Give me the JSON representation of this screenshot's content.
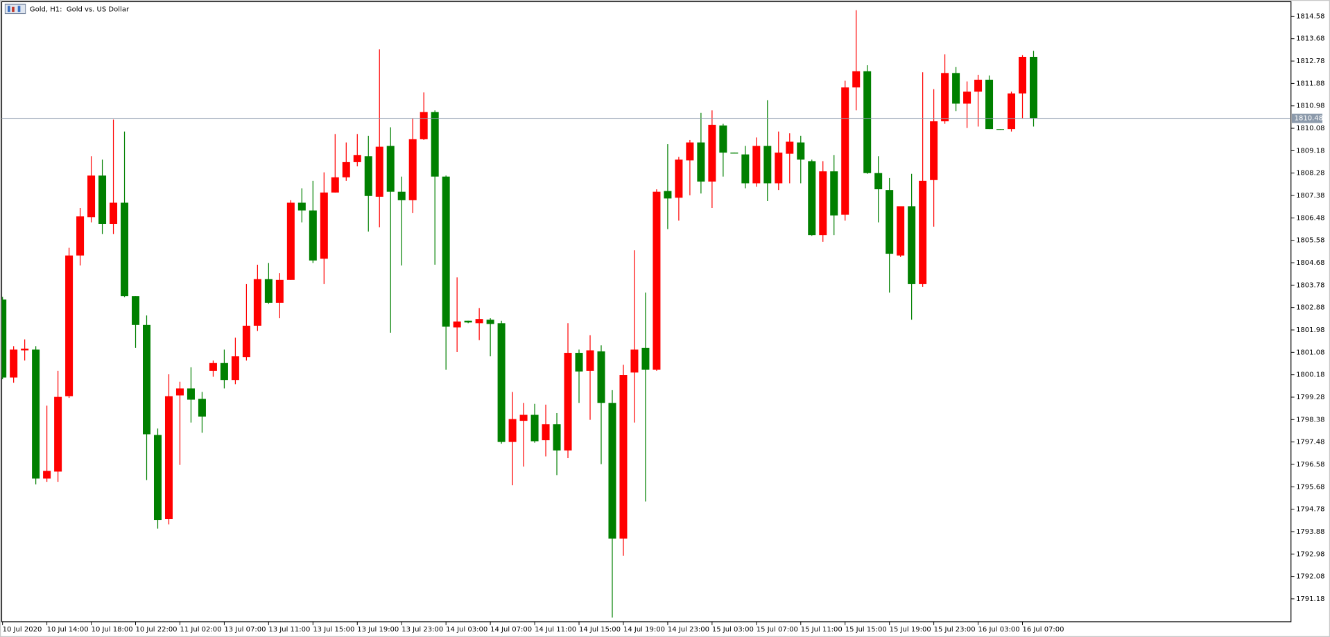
{
  "chart_data": {
    "type": "candlestick",
    "title": "Gold, H1:  Gold vs. US Dollar",
    "categories": [
      "10 Jul 2020",
      null,
      null,
      null,
      "10 Jul 14:00",
      null,
      null,
      null,
      "10 Jul 18:00",
      null,
      null,
      null,
      "10 Jul 22:00",
      null,
      null,
      null,
      "11 Jul 02:00",
      null,
      null,
      null,
      "13 Jul 07:00",
      null,
      null,
      null,
      "13 Jul 11:00",
      null,
      null,
      null,
      "13 Jul 15:00",
      null,
      null,
      null,
      "13 Jul 19:00",
      null,
      null,
      null,
      "13 Jul 23:00",
      null,
      null,
      null,
      "14 Jul 03:00",
      null,
      null,
      null,
      "14 Jul 07:00",
      null,
      null,
      null,
      "14 Jul 11:00",
      null,
      null,
      null,
      "14 Jul 15:00",
      null,
      null,
      null,
      "14 Jul 19:00",
      null,
      null,
      null,
      "14 Jul 23:00",
      null,
      null,
      null,
      "15 Jul 03:00",
      null,
      null,
      null,
      "15 Jul 07:00",
      null,
      null,
      null,
      "15 Jul 11:00",
      null,
      null,
      null,
      "15 Jul 15:00",
      null,
      null,
      null,
      "15 Jul 19:00",
      null,
      null,
      null,
      "15 Jul 23:00",
      null,
      null,
      null,
      "16 Jul 03:00",
      null,
      null,
      null,
      "16 Jul 07:00",
      null
    ],
    "open": [
      1803.2,
      1800.07,
      1801.16,
      1801.19,
      1796.01,
      1796.29,
      1799.32,
      1804.97,
      1806.51,
      1808.18,
      1806.24,
      1807.09,
      1803.34,
      1802.18,
      1797.76,
      1794.38,
      1799.35,
      1799.63,
      1799.21,
      1800.34,
      1800.65,
      1799.97,
      1800.89,
      1802.15,
      1804.02,
      1803.07,
      1803.99,
      1807.09,
      1806.78,
      1804.84,
      1807.5,
      1808.11,
      1808.72,
      1808.96,
      1807.33,
      1809.37,
      1807.53,
      1807.19,
      1809.64,
      1810.73,
      1808.14,
      1802.08,
      1802.35,
      1802.25,
      1802.39,
      1802.25,
      1797.48,
      1798.33,
      1798.57,
      1797.55,
      1798.19,
      1797.14,
      1801.06,
      1800.34,
      1801.12,
      1799.05,
      1793.6,
      1800.27,
      1801.26,
      1800.38,
      1807.56,
      1807.29,
      1808.79,
      1809.51,
      1807.94,
      1810.19,
      1809.1,
      1809.03,
      1807.87,
      1809.37,
      1807.87,
      1809.06,
      1809.51,
      1808.76,
      1805.79,
      1808.35,
      1806.61,
      1811.72,
      1812.37,
      1808.28,
      1807.6,
      1804.97,
      1806.95,
      1803.82,
      1808.0,
      1810.36,
      1812.3,
      1811.07,
      1811.55,
      1812.03,
      1810.05,
      1810.05,
      1811.48,
      1812.95
    ],
    "high": [
      1803.31,
      1801.33,
      1801.6,
      1801.33,
      1798.94,
      1800.34,
      1805.28,
      1806.88,
      1808.96,
      1808.82,
      1810.43,
      1809.95,
      1803.34,
      1802.56,
      1798.02,
      1800.2,
      1799.9,
      1800.48,
      1799.49,
      1800.75,
      1801.19,
      1801.67,
      1803.82,
      1804.6,
      1804.67,
      1804.26,
      1807.19,
      1807.67,
      1807.97,
      1808.31,
      1809.85,
      1809.51,
      1809.85,
      1809.78,
      1813.25,
      1810.12,
      1808.14,
      1810.46,
      1811.52,
      1810.8,
      1808.18,
      1804.09,
      1802.35,
      1802.86,
      1802.45,
      1802.35,
      1799.49,
      1799.05,
      1799.01,
      1798.98,
      1798.64,
      1802.25,
      1801.19,
      1801.77,
      1801.36,
      1799.56,
      1800.58,
      1805.18,
      1803.48,
      1807.63,
      1809.44,
      1808.93,
      1809.61,
      1810.7,
      1810.8,
      1810.26,
      1809.1,
      1809.37,
      1809.71,
      1811.21,
      1809.95,
      1809.88,
      1809.78,
      1808.82,
      1808.76,
      1809.0,
      1811.99,
      1814.82,
      1812.61,
      1808.96,
      1808.08,
      1806.95,
      1808.25,
      1812.33,
      1811.65,
      1813.05,
      1812.54,
      1811.96,
      1812.23,
      1812.2,
      1810.05,
      1811.55,
      1813.02,
      1813.19
    ],
    "low": [
      1800.0,
      1799.86,
      1800.75,
      1795.78,
      1795.88,
      1795.88,
      1799.25,
      1804.57,
      1806.3,
      1805.83,
      1805.83,
      1803.3,
      1801.26,
      1795.95,
      1794.0,
      1794.17,
      1796.56,
      1798.26,
      1797.85,
      1800.1,
      1799.63,
      1799.8,
      1800.75,
      1801.94,
      1803.03,
      1802.45,
      1803.99,
      1806.3,
      1804.67,
      1803.82,
      1807.5,
      1807.97,
      1808.55,
      1805.93,
      1806.1,
      1801.87,
      1804.57,
      1806.68,
      1809.61,
      1804.6,
      1800.38,
      1801.09,
      1802.25,
      1801.57,
      1800.92,
      1797.41,
      1795.74,
      1796.49,
      1797.45,
      1796.9,
      1796.15,
      1796.83,
      1799.05,
      1798.37,
      1796.59,
      1790.43,
      1792.91,
      1798.26,
      1795.09,
      1800.34,
      1806.03,
      1806.37,
      1807.39,
      1807.46,
      1806.88,
      1808.14,
      1809.07,
      1807.67,
      1807.73,
      1807.16,
      1807.6,
      1807.87,
      1807.87,
      1805.76,
      1805.52,
      1805.79,
      1806.37,
      1810.8,
      1808.25,
      1806.3,
      1803.48,
      1804.91,
      1802.39,
      1803.71,
      1806.13,
      1810.26,
      1810.77,
      1810.09,
      1810.15,
      1810.05,
      1810.02,
      1809.95,
      1810.46,
      1810.15
    ],
    "close": [
      1800.07,
      1801.19,
      1801.23,
      1796.01,
      1796.32,
      1799.29,
      1804.97,
      1806.54,
      1808.18,
      1806.24,
      1807.09,
      1803.34,
      1802.18,
      1797.79,
      1794.35,
      1799.32,
      1799.63,
      1799.18,
      1798.5,
      1800.65,
      1799.97,
      1800.92,
      1802.15,
      1804.02,
      1803.07,
      1803.99,
      1807.09,
      1806.78,
      1804.77,
      1807.5,
      1808.11,
      1808.72,
      1809.0,
      1807.36,
      1809.34,
      1807.53,
      1807.19,
      1809.64,
      1810.73,
      1808.14,
      1802.11,
      1802.32,
      1802.28,
      1802.42,
      1802.22,
      1797.48,
      1798.4,
      1798.57,
      1797.51,
      1798.19,
      1797.14,
      1801.06,
      1800.31,
      1801.16,
      1799.05,
      1793.6,
      1800.17,
      1801.19,
      1800.38,
      1807.53,
      1807.26,
      1808.82,
      1809.51,
      1807.94,
      1810.22,
      1809.1,
      1809.07,
      1807.87,
      1809.37,
      1807.87,
      1809.1,
      1809.54,
      1808.82,
      1805.79,
      1808.35,
      1806.58,
      1811.72,
      1812.37,
      1808.28,
      1807.63,
      1805.04,
      1806.95,
      1803.82,
      1807.97,
      1810.36,
      1812.3,
      1811.07,
      1811.55,
      1812.03,
      1810.05,
      1810.02,
      1811.48,
      1812.95,
      1810.48
    ],
    "up_color": "#ff0000",
    "down_color": "#008000",
    "current_price": 1810.48,
    "ylim": [
      1790.26,
      1815.13
    ],
    "yticks": [
      1791.18,
      1792.08,
      1792.98,
      1793.88,
      1794.78,
      1795.68,
      1796.58,
      1797.48,
      1798.38,
      1799.28,
      1800.18,
      1801.08,
      1801.98,
      1802.88,
      1803.78,
      1804.68,
      1805.58,
      1806.48,
      1807.38,
      1808.28,
      1809.18,
      1810.08,
      1810.98,
      1811.88,
      1812.78,
      1813.68,
      1814.58
    ],
    "grid": false
  }
}
